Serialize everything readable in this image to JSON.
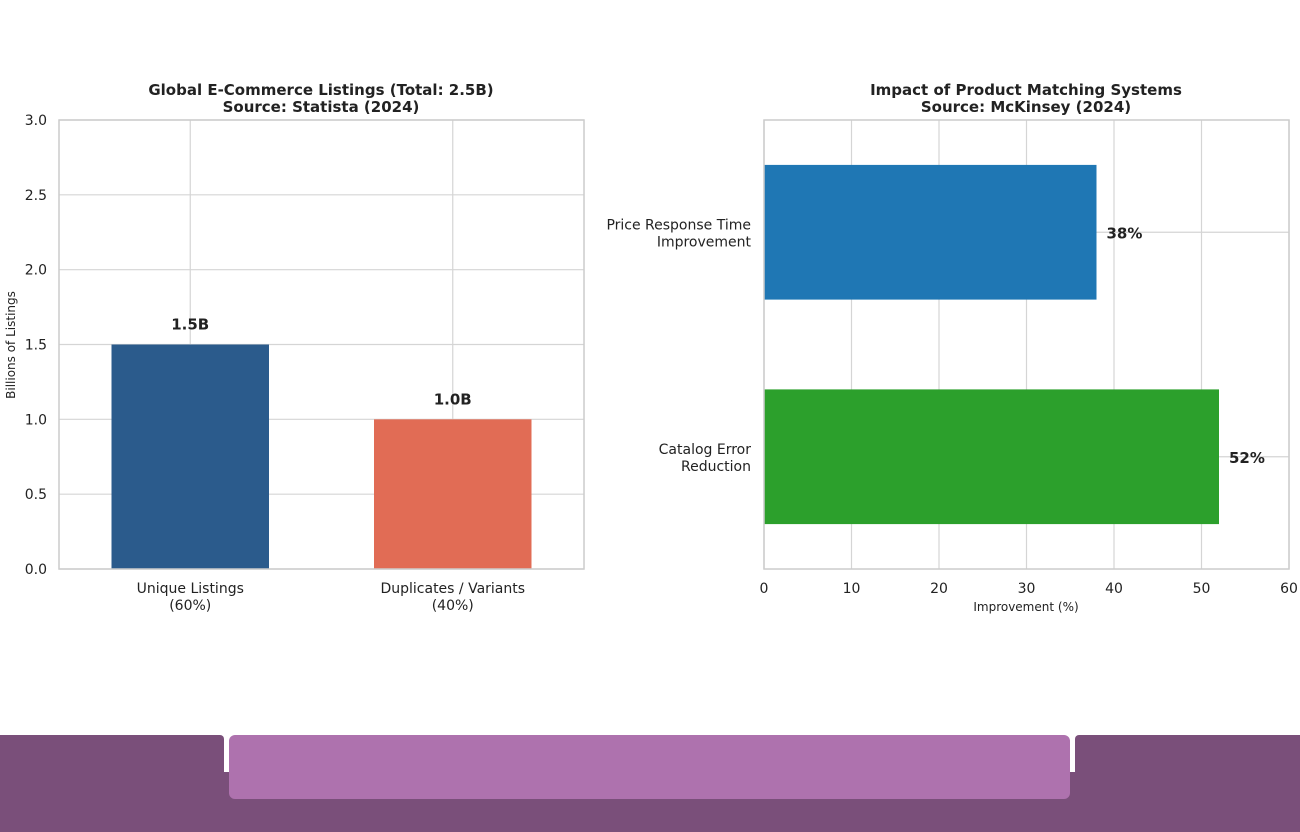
{
  "chart_data": [
    {
      "type": "bar",
      "title": "Global E-Commerce Listings (Total: 2.5B)",
      "subtitle": "Source: Statista (2024)",
      "categories": [
        "Unique Listings\n(60%)",
        "Duplicates / Variants\n(40%)"
      ],
      "values": [
        1.5,
        1.0
      ],
      "data_labels": [
        "1.5B",
        "1.0B"
      ],
      "colors": [
        "#2b5b8c",
        "#e16c55"
      ],
      "xlabel": "",
      "ylabel": "Billions of Listings",
      "ylim": [
        0,
        3.0
      ],
      "yticks": [
        "0.0",
        "0.5",
        "1.0",
        "1.5",
        "2.0",
        "2.5",
        "3.0"
      ],
      "grid": true
    },
    {
      "type": "bar",
      "orientation": "horizontal",
      "title": "Impact of Product Matching Systems",
      "subtitle": "Source: McKinsey (2024)",
      "categories": [
        "Price Response Time\nImprovement",
        "Catalog Error\nReduction"
      ],
      "values": [
        38,
        52
      ],
      "data_labels": [
        "38%",
        "52%"
      ],
      "colors": [
        "#1f77b4",
        "#2ca02c"
      ],
      "xlabel": "Improvement (%)",
      "ylabel": "",
      "xlim": [
        0,
        60
      ],
      "xticks": [
        "0",
        "10",
        "20",
        "30",
        "40",
        "50",
        "60"
      ],
      "grid": true
    }
  ],
  "footer": {
    "colors": {
      "dark": "#7a4f7a",
      "light": "#ae72ae"
    }
  }
}
